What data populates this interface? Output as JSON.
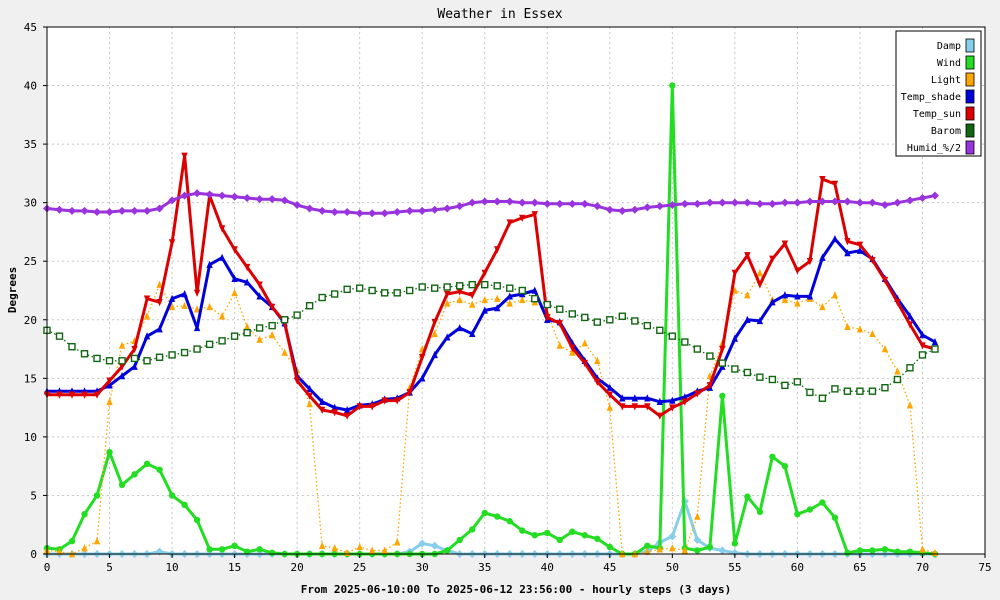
{
  "chart_data": {
    "type": "line",
    "title": "Weather in Essex",
    "xlabel": "From 2025-06-10:00 To 2025-06-12 23:56:00 - hourly steps (3 days)",
    "ylabel": "Degrees",
    "xlim": [
      0,
      75
    ],
    "ylim": [
      0,
      45
    ],
    "x_ticks": [
      0,
      5,
      10,
      15,
      20,
      25,
      30,
      35,
      40,
      45,
      50,
      55,
      60,
      65,
      70,
      75
    ],
    "y_ticks": [
      0,
      5,
      10,
      15,
      20,
      25,
      30,
      35,
      40,
      45
    ],
    "grid": true,
    "legend_position": "top-right",
    "background_color": "#f0f0f0",
    "plot_background": "#ffffff",
    "series": [
      {
        "name": "Damp",
        "color": "#87ceeb",
        "line_style": "solid",
        "marker": "diamond",
        "x": [
          0,
          1,
          2,
          3,
          4,
          5,
          6,
          7,
          8,
          9,
          10,
          11,
          12,
          13,
          14,
          15,
          16,
          17,
          18,
          19,
          20,
          21,
          22,
          23,
          24,
          25,
          26,
          27,
          28,
          29,
          30,
          31,
          32,
          33,
          34,
          35,
          36,
          37,
          38,
          39,
          40,
          41,
          42,
          43,
          44,
          45,
          46,
          47,
          48,
          49,
          50,
          51,
          52,
          53,
          54,
          55,
          56,
          57,
          58,
          59,
          60,
          61,
          62,
          63,
          64,
          65,
          66,
          67,
          68,
          69,
          70,
          71
        ],
        "values": [
          0,
          0,
          0,
          0,
          0,
          0,
          0,
          0,
          0,
          0.2,
          0,
          0,
          0,
          0,
          0,
          0,
          0,
          0,
          0,
          0,
          0,
          0,
          0,
          0,
          0,
          0,
          0,
          0,
          0,
          0.2,
          0.9,
          0.7,
          0.3,
          0,
          0,
          0,
          0,
          0,
          0,
          0,
          0,
          0,
          0,
          0,
          0,
          0,
          0,
          0,
          0.2,
          1,
          1.5,
          4.5,
          1.2,
          0.5,
          0.3,
          0.1,
          0,
          0,
          0,
          0,
          0,
          0,
          0,
          0,
          0,
          0,
          0,
          0,
          0,
          0,
          0,
          0
        ]
      },
      {
        "name": "Wind",
        "color": "#22dd22",
        "line_style": "solid",
        "marker": "circle",
        "x": [
          0,
          1,
          2,
          3,
          4,
          5,
          6,
          7,
          8,
          9,
          10,
          11,
          12,
          13,
          14,
          15,
          16,
          17,
          18,
          19,
          20,
          21,
          22,
          23,
          24,
          25,
          26,
          27,
          28,
          29,
          30,
          31,
          32,
          33,
          34,
          35,
          36,
          37,
          38,
          39,
          40,
          41,
          42,
          43,
          44,
          45,
          46,
          47,
          48,
          49,
          50,
          51,
          52,
          53,
          54,
          55,
          56,
          57,
          58,
          59,
          60,
          61,
          62,
          63,
          64,
          65,
          66,
          67,
          68,
          69,
          70,
          71
        ],
        "values": [
          0.5,
          0.4,
          1.1,
          3.4,
          5,
          8.7,
          5.9,
          6.8,
          7.7,
          7.2,
          5,
          4.2,
          2.9,
          0.4,
          0.4,
          0.7,
          0.2,
          0.4,
          0.1,
          0,
          0,
          0,
          0,
          0,
          0,
          0,
          0,
          0,
          0,
          0,
          0,
          0,
          0.3,
          1.2,
          2.1,
          3.5,
          3.2,
          2.8,
          2,
          1.6,
          1.8,
          1.2,
          1.9,
          1.6,
          1.3,
          0.6,
          0,
          0,
          0.7,
          0.5,
          40,
          0.5,
          0.3,
          0.6,
          13.5,
          0.9,
          4.9,
          3.6,
          8.3,
          7.5,
          3.4,
          3.8,
          4.4,
          3.1,
          0.1,
          0.3,
          0.3,
          0.4,
          0.2,
          0.2,
          0.1,
          0
        ]
      },
      {
        "name": "Light",
        "color": "#ffa500",
        "line_style": "dotted",
        "marker": "triangle-up",
        "x": [
          0,
          1,
          2,
          3,
          4,
          5,
          6,
          7,
          8,
          9,
          10,
          11,
          12,
          13,
          14,
          15,
          16,
          17,
          18,
          19,
          20,
          21,
          22,
          23,
          24,
          25,
          26,
          27,
          28,
          29,
          30,
          31,
          32,
          33,
          34,
          35,
          36,
          37,
          38,
          39,
          40,
          41,
          42,
          43,
          44,
          45,
          46,
          47,
          48,
          49,
          50,
          51,
          52,
          53,
          54,
          55,
          56,
          57,
          58,
          59,
          60,
          61,
          62,
          63,
          64,
          65,
          66,
          67,
          68,
          69,
          70,
          71
        ],
        "values": [
          0.3,
          0.2,
          0,
          0.5,
          1.1,
          13,
          17.8,
          18.2,
          20.3,
          23,
          21.1,
          21.2,
          20.9,
          21.1,
          20.3,
          22.3,
          19.4,
          18.3,
          18.7,
          17.2,
          15.7,
          12.8,
          0.7,
          0.5,
          0.1,
          0.6,
          0.3,
          0.3,
          1,
          14.2,
          17.5,
          18.8,
          21.4,
          21.7,
          21.3,
          21.7,
          21.8,
          21.4,
          21.7,
          21.5,
          20.6,
          17.8,
          17.2,
          18,
          16.5,
          12.5,
          0,
          0,
          0.2,
          0.4,
          0.5,
          0.3,
          3.2,
          15.2,
          18,
          22.5,
          22.1,
          24,
          21.7,
          21.7,
          21.4,
          21.8,
          21.1,
          22.1,
          19.4,
          19.2,
          18.8,
          17.5,
          15.6,
          12.7,
          0.4,
          0.1
        ]
      },
      {
        "name": "Temp_shade",
        "color": "#0000dd",
        "line_style": "solid",
        "marker": "triangle-up",
        "x": [
          0,
          1,
          2,
          3,
          4,
          5,
          6,
          7,
          8,
          9,
          10,
          11,
          12,
          13,
          14,
          15,
          16,
          17,
          18,
          19,
          20,
          21,
          22,
          23,
          24,
          25,
          26,
          27,
          28,
          29,
          30,
          31,
          32,
          33,
          34,
          35,
          36,
          37,
          38,
          39,
          40,
          41,
          42,
          43,
          44,
          45,
          46,
          47,
          48,
          49,
          50,
          51,
          52,
          53,
          54,
          55,
          56,
          57,
          58,
          59,
          60,
          61,
          62,
          63,
          64,
          65,
          66,
          67,
          68,
          69,
          70,
          71
        ],
        "values": [
          13.9,
          13.9,
          13.9,
          13.9,
          13.9,
          14.4,
          15.2,
          16,
          18.6,
          19.2,
          21.8,
          22.2,
          19.3,
          24.7,
          25.3,
          23.5,
          23.2,
          22,
          21.1,
          19.7,
          15.2,
          14.1,
          13,
          12.5,
          12.3,
          12.7,
          12.8,
          13.2,
          13.3,
          13.8,
          15,
          17,
          18.5,
          19.3,
          18.8,
          20.8,
          21,
          22,
          22.2,
          22.5,
          20,
          19.8,
          18,
          16.5,
          15,
          14.2,
          13.3,
          13.3,
          13.3,
          13,
          13.1,
          13.4,
          13.9,
          14.2,
          16,
          18.4,
          20,
          19.9,
          21.5,
          22.1,
          22,
          22,
          25.3,
          26.9,
          25.7,
          25.9,
          25.2,
          23.5,
          21.8,
          20.3,
          18.7,
          18.1
        ]
      },
      {
        "name": "Temp_sun",
        "color": "#dd0000",
        "line_style": "solid",
        "marker": "triangle-down",
        "x": [
          0,
          1,
          2,
          3,
          4,
          5,
          6,
          7,
          8,
          9,
          10,
          11,
          12,
          13,
          14,
          15,
          16,
          17,
          18,
          19,
          20,
          21,
          22,
          23,
          24,
          25,
          26,
          27,
          28,
          29,
          30,
          31,
          32,
          33,
          34,
          35,
          36,
          37,
          38,
          39,
          40,
          41,
          42,
          43,
          44,
          45,
          46,
          47,
          48,
          49,
          50,
          51,
          52,
          53,
          54,
          55,
          56,
          57,
          58,
          59,
          60,
          61,
          62,
          63,
          64,
          65,
          66,
          67,
          68,
          69,
          70,
          71
        ],
        "values": [
          13.6,
          13.6,
          13.6,
          13.6,
          13.6,
          14.8,
          16,
          17.5,
          21.8,
          21.5,
          26.6,
          34,
          22.3,
          30.6,
          27.8,
          26,
          24.5,
          23,
          21.1,
          19.8,
          14.8,
          13.5,
          12.3,
          12.1,
          11.8,
          12.6,
          12.6,
          13.1,
          13.1,
          13.8,
          16.8,
          19.8,
          22.2,
          22.4,
          22.1,
          24,
          26,
          28.3,
          28.7,
          29,
          20.2,
          19.7,
          17.6,
          16.3,
          14.7,
          13.6,
          12.6,
          12.6,
          12.6,
          11.8,
          12.5,
          13,
          13.7,
          14.4,
          17.5,
          24,
          25.5,
          23,
          25.2,
          26.5,
          24.2,
          25,
          32,
          31.6,
          26.7,
          26.4,
          25.1,
          23.4,
          21.5,
          19.6,
          17.8,
          17.5
        ]
      },
      {
        "name": "Barom",
        "color": "#116611",
        "line_style": "dotted",
        "marker": "square",
        "x": [
          0,
          1,
          2,
          3,
          4,
          5,
          6,
          7,
          8,
          9,
          10,
          11,
          12,
          13,
          14,
          15,
          16,
          17,
          18,
          19,
          20,
          21,
          22,
          23,
          24,
          25,
          26,
          27,
          28,
          29,
          30,
          31,
          32,
          33,
          34,
          35,
          36,
          37,
          38,
          39,
          40,
          41,
          42,
          43,
          44,
          45,
          46,
          47,
          48,
          49,
          50,
          51,
          52,
          53,
          54,
          55,
          56,
          57,
          58,
          59,
          60,
          61,
          62,
          63,
          64,
          65,
          66,
          67,
          68,
          69,
          70,
          71
        ],
        "values": [
          19.1,
          18.6,
          17.7,
          17.1,
          16.7,
          16.5,
          16.5,
          16.7,
          16.5,
          16.8,
          17,
          17.2,
          17.5,
          17.9,
          18.2,
          18.6,
          18.9,
          19.3,
          19.5,
          20,
          20.4,
          21.2,
          21.9,
          22.2,
          22.6,
          22.7,
          22.5,
          22.3,
          22.3,
          22.5,
          22.8,
          22.7,
          22.8,
          22.9,
          23,
          23,
          22.9,
          22.7,
          22.5,
          21.8,
          21.3,
          20.9,
          20.5,
          20.2,
          19.8,
          20,
          20.3,
          19.9,
          19.5,
          19.1,
          18.6,
          18.1,
          17.5,
          16.9,
          16.3,
          15.8,
          15.5,
          15.1,
          14.9,
          14.4,
          14.7,
          13.8,
          13.3,
          14.1,
          13.9,
          13.9,
          13.9,
          14.2,
          14.9,
          15.9,
          17,
          17.5
        ]
      },
      {
        "name": "Humid_%/2",
        "color": "#9933dd",
        "line_style": "solid",
        "marker": "diamond",
        "x": [
          0,
          1,
          2,
          3,
          4,
          5,
          6,
          7,
          8,
          9,
          10,
          11,
          12,
          13,
          14,
          15,
          16,
          17,
          18,
          19,
          20,
          21,
          22,
          23,
          24,
          25,
          26,
          27,
          28,
          29,
          30,
          31,
          32,
          33,
          34,
          35,
          36,
          37,
          38,
          39,
          40,
          41,
          42,
          43,
          44,
          45,
          46,
          47,
          48,
          49,
          50,
          51,
          52,
          53,
          54,
          55,
          56,
          57,
          58,
          59,
          60,
          61,
          62,
          63,
          64,
          65,
          66,
          67,
          68,
          69,
          70,
          71
        ],
        "values": [
          29.5,
          29.4,
          29.3,
          29.3,
          29.2,
          29.2,
          29.3,
          29.3,
          29.3,
          29.5,
          30.2,
          30.6,
          30.8,
          30.7,
          30.6,
          30.5,
          30.4,
          30.3,
          30.3,
          30.2,
          29.8,
          29.5,
          29.3,
          29.2,
          29.2,
          29.1,
          29.1,
          29.1,
          29.2,
          29.3,
          29.3,
          29.4,
          29.5,
          29.7,
          30,
          30.1,
          30.1,
          30.1,
          30,
          30,
          29.9,
          29.9,
          29.9,
          29.9,
          29.7,
          29.4,
          29.3,
          29.4,
          29.6,
          29.7,
          29.8,
          29.9,
          29.9,
          30,
          30,
          30,
          30,
          29.9,
          29.9,
          30,
          30,
          30.1,
          30.1,
          30.1,
          30.1,
          30,
          30,
          29.8,
          30,
          30.2,
          30.4,
          30.6
        ]
      }
    ]
  }
}
